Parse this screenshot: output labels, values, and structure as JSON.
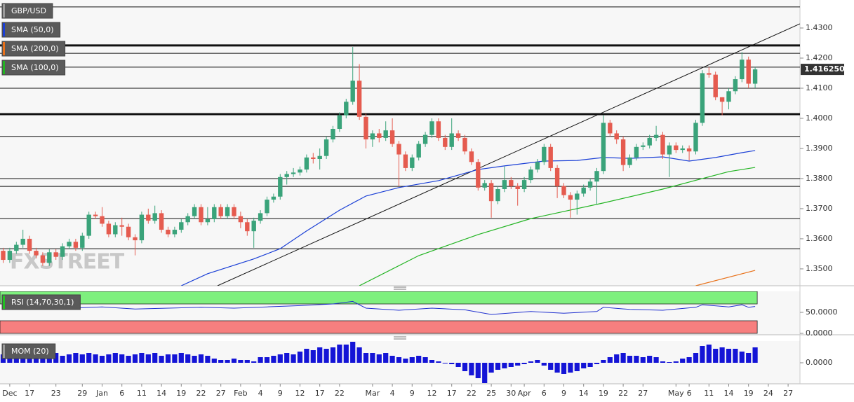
{
  "chart_data": [
    {
      "type": "candlestick",
      "symbol": "GBP/USD",
      "up_color": "#3aa37a",
      "down_color": "#e55b4f",
      "watermark": "FXSTREET",
      "categories": [
        null,
        "Dec",
        null,
        null,
        "17",
        null,
        null,
        null,
        "23",
        null,
        null,
        null,
        "29",
        null,
        null,
        "Jan",
        null,
        null,
        "6",
        null,
        null,
        "11",
        null,
        null,
        "14",
        null,
        null,
        "19",
        null,
        null,
        "22",
        null,
        null,
        "27",
        null,
        null,
        "Feb",
        null,
        null,
        "4",
        null,
        null,
        "9",
        null,
        null,
        "12",
        null,
        null,
        "17",
        null,
        null,
        "22",
        null,
        null,
        null,
        null,
        "Mar",
        null,
        null,
        "4",
        null,
        null,
        "9",
        null,
        null,
        "12",
        null,
        null,
        "17",
        null,
        null,
        "22",
        null,
        null,
        "25",
        null,
        null,
        "30",
        null,
        "Apr",
        null,
        null,
        "6",
        null,
        null,
        "9",
        null,
        null,
        "14",
        null,
        null,
        "19",
        null,
        null,
        "22",
        null,
        null,
        "27",
        null,
        null,
        null,
        null,
        "May",
        null,
        "6",
        null,
        null,
        "11",
        null,
        null,
        "14",
        null,
        null,
        "19",
        null,
        null,
        "24",
        null,
        null,
        "27"
      ],
      "open": [
        1.356,
        1.353,
        1.356,
        1.358,
        1.36,
        1.356,
        1.3545,
        1.352,
        1.3555,
        1.354,
        1.3575,
        1.359,
        1.357,
        1.361,
        1.368,
        1.3675,
        1.365,
        1.3615,
        1.3645,
        1.364,
        1.3605,
        1.3595,
        1.368,
        1.366,
        1.3685,
        1.363,
        1.3615,
        1.363,
        1.3655,
        1.3675,
        1.3705,
        1.3655,
        1.3665,
        1.3705,
        1.3675,
        1.3705,
        1.3675,
        1.3655,
        1.3625,
        1.366,
        1.3685,
        1.373,
        1.374,
        1.3805,
        1.3815,
        1.382,
        1.383,
        1.387,
        1.3865,
        1.3875,
        1.393,
        1.3965,
        1.401,
        1.4055,
        1.4125,
        1.4005,
        1.393,
        1.395,
        1.3935,
        1.396,
        1.3915,
        1.388,
        1.3835,
        1.387,
        1.3915,
        1.3945,
        1.399,
        1.3935,
        1.3905,
        1.395,
        1.3935,
        1.389,
        1.3855,
        1.377,
        1.3785,
        1.3725,
        1.3765,
        1.3795,
        1.3775,
        1.3765,
        1.3795,
        1.383,
        1.3855,
        1.3905,
        1.3835,
        1.3775,
        1.3745,
        1.373,
        1.375,
        1.377,
        1.379,
        1.3825,
        1.3985,
        1.395,
        1.393,
        1.3845,
        1.387,
        1.3905,
        1.391,
        1.3935,
        1.3945,
        1.388,
        1.391,
        1.3895,
        1.39,
        1.389,
        1.3985,
        1.415,
        1.4145,
        1.407,
        1.4055,
        1.409,
        1.413,
        1.4195,
        1.4115,
        null,
        null,
        null,
        null,
        null
      ],
      "high": [
        1.357,
        1.357,
        1.359,
        1.363,
        1.361,
        1.357,
        1.3555,
        1.3565,
        1.3565,
        1.3585,
        1.36,
        1.36,
        1.362,
        1.369,
        1.369,
        1.3705,
        1.366,
        1.3655,
        1.367,
        1.365,
        1.3615,
        1.369,
        1.37,
        1.371,
        1.3695,
        1.364,
        1.364,
        1.3665,
        1.3685,
        1.3715,
        1.3715,
        1.3705,
        1.3715,
        1.3715,
        1.3715,
        1.3715,
        1.369,
        1.3665,
        1.367,
        1.3695,
        1.374,
        1.375,
        1.3815,
        1.3825,
        1.3835,
        1.384,
        1.388,
        1.3885,
        1.39,
        1.394,
        1.3975,
        1.402,
        1.4065,
        1.4237,
        1.418,
        1.4015,
        1.396,
        1.3965,
        1.399,
        1.4,
        1.3925,
        1.389,
        1.388,
        1.3925,
        1.3955,
        1.4,
        1.4,
        1.3945,
        1.4,
        1.396,
        1.3945,
        1.39,
        1.3865,
        1.3795,
        1.3795,
        1.3775,
        1.384,
        1.3805,
        1.3785,
        1.3805,
        1.384,
        1.3865,
        1.3915,
        1.3915,
        1.3845,
        1.3785,
        1.3755,
        1.376,
        1.378,
        1.38,
        1.3835,
        1.401,
        1.3995,
        1.396,
        1.394,
        1.388,
        1.3915,
        1.392,
        1.3945,
        1.3975,
        1.3955,
        1.392,
        1.392,
        1.391,
        1.391,
        1.3995,
        1.416,
        1.417,
        1.4155,
        1.407,
        1.41,
        1.414,
        1.422,
        1.4205,
        1.417,
        null,
        null,
        null,
        null,
        null
      ],
      "low": [
        1.352,
        1.352,
        1.355,
        1.357,
        1.355,
        1.3535,
        1.351,
        1.351,
        1.353,
        1.353,
        1.3565,
        1.356,
        1.356,
        1.36,
        1.3665,
        1.364,
        1.3605,
        1.3605,
        1.361,
        1.3595,
        1.3545,
        1.3585,
        1.365,
        1.365,
        1.362,
        1.3605,
        1.3605,
        1.362,
        1.3645,
        1.3665,
        1.3645,
        1.3645,
        1.3655,
        1.3665,
        1.3665,
        1.3665,
        1.3635,
        1.361,
        1.357,
        1.365,
        1.3675,
        1.372,
        1.373,
        1.378,
        1.3805,
        1.381,
        1.382,
        1.385,
        1.383,
        1.3865,
        1.392,
        1.3955,
        1.4,
        1.4045,
        1.3995,
        1.39,
        1.3905,
        1.392,
        1.3925,
        1.3905,
        1.3775,
        1.3825,
        1.3825,
        1.386,
        1.3905,
        1.3935,
        1.3925,
        1.3895,
        1.3895,
        1.3925,
        1.388,
        1.3845,
        1.376,
        1.376,
        1.367,
        1.3715,
        1.3755,
        1.3765,
        1.371,
        1.3755,
        1.3785,
        1.382,
        1.3845,
        1.3825,
        1.3735,
        1.3735,
        1.367,
        1.368,
        1.374,
        1.376,
        1.3715,
        1.3815,
        1.394,
        1.3915,
        1.3825,
        1.3835,
        1.386,
        1.3895,
        1.39,
        1.3925,
        1.3865,
        1.3805,
        1.3885,
        1.3885,
        1.386,
        1.388,
        1.3975,
        1.4135,
        1.406,
        1.401,
        1.403,
        1.408,
        1.412,
        1.41,
        1.41,
        null,
        null,
        null,
        null,
        null
      ],
      "close": [
        1.353,
        1.356,
        1.358,
        1.36,
        1.356,
        1.3545,
        1.352,
        1.3555,
        1.354,
        1.3575,
        1.359,
        1.357,
        1.361,
        1.368,
        1.3675,
        1.365,
        1.3615,
        1.3645,
        1.364,
        1.3605,
        1.3595,
        1.368,
        1.366,
        1.3685,
        1.363,
        1.3615,
        1.363,
        1.3655,
        1.3675,
        1.3705,
        1.3655,
        1.3665,
        1.3705,
        1.3675,
        1.3705,
        1.3675,
        1.3655,
        1.3625,
        1.366,
        1.3685,
        1.373,
        1.374,
        1.3805,
        1.3815,
        1.382,
        1.383,
        1.387,
        1.3865,
        1.3875,
        1.393,
        1.3965,
        1.401,
        1.4055,
        1.4125,
        1.4005,
        1.393,
        1.395,
        1.3935,
        1.396,
        1.3915,
        1.388,
        1.3835,
        1.387,
        1.3915,
        1.3945,
        1.399,
        1.3935,
        1.3905,
        1.395,
        1.3935,
        1.389,
        1.3855,
        1.377,
        1.3785,
        1.3725,
        1.3765,
        1.3795,
        1.3775,
        1.3765,
        1.3795,
        1.383,
        1.3855,
        1.3905,
        1.3835,
        1.3775,
        1.3745,
        1.373,
        1.375,
        1.377,
        1.379,
        1.3825,
        1.3985,
        1.395,
        1.393,
        1.3845,
        1.387,
        1.3905,
        1.391,
        1.3935,
        1.3945,
        1.388,
        1.391,
        1.3895,
        1.39,
        1.389,
        1.3985,
        1.415,
        1.4145,
        1.407,
        1.4055,
        1.409,
        1.413,
        1.4195,
        1.4115,
        1.41625,
        null,
        null,
        null,
        null,
        null
      ],
      "last_label": "1.416250",
      "series": [
        {
          "name": "SMA (50,0)",
          "color": "#1a3fd6",
          "x": [
            27,
            31,
            38,
            42,
            46,
            51,
            55,
            60,
            66,
            72,
            76,
            82,
            87,
            91,
            95,
            100,
            104,
            108,
            112,
            114
          ],
          "values": [
            1.3444,
            1.3484,
            1.3533,
            1.3567,
            1.3626,
            1.3695,
            1.3742,
            1.377,
            1.3793,
            1.383,
            1.3842,
            1.3858,
            1.386,
            1.387,
            1.3867,
            1.3872,
            1.3858,
            1.387,
            1.3886,
            1.3893
          ]
        },
        {
          "name": "SMA (200,0)",
          "color": "#e8711a",
          "x": [
            105,
            114
          ],
          "values": [
            1.3444,
            1.3495
          ]
        },
        {
          "name": "SMA (100,0)",
          "color": "#22b422",
          "x": [
            54,
            63,
            72,
            80,
            91,
            100,
            106,
            110,
            114
          ],
          "values": [
            1.3444,
            1.3544,
            1.3614,
            1.3667,
            1.3719,
            1.3765,
            1.38,
            1.3823,
            1.3837
          ]
        }
      ],
      "levels": [
        1.437,
        1.4216,
        1.417,
        1.41,
        1.394,
        1.38,
        1.3774,
        1.3667,
        1.3567
      ],
      "thick_levels": [
        1.4242,
        1.4014
      ],
      "trendline": {
        "x": [
          32.5,
          120.8
        ],
        "y": [
          1.3444,
          1.4314
        ]
      },
      "ylim": [
        1.3444,
        1.4393
      ],
      "yticks": [
        {
          "value": 1.43,
          "label": "1.4300"
        },
        {
          "value": 1.42,
          "label": "1.4200"
        },
        {
          "value": 1.41,
          "label": "1.4100"
        },
        {
          "value": 1.4,
          "label": "1.4000"
        },
        {
          "value": 1.39,
          "label": "1.3900"
        },
        {
          "value": 1.38,
          "label": "1.3800"
        },
        {
          "value": 1.37,
          "label": "1.3700"
        },
        {
          "value": 1.36,
          "label": "1.3600"
        },
        {
          "value": 1.35,
          "label": "1.3500"
        }
      ]
    },
    {
      "type": "line",
      "title": "RSI (14,70,30,1)",
      "color": "#2030d0",
      "x": [
        0,
        5,
        10,
        15,
        20,
        25,
        30,
        35,
        40,
        45,
        50,
        53,
        55,
        60,
        65,
        70,
        74,
        80,
        85,
        90,
        91,
        95,
        100,
        105,
        106,
        110,
        112,
        113,
        114
      ],
      "values": [
        58,
        62,
        60,
        63,
        58,
        60,
        62,
        60,
        63,
        66,
        70,
        76,
        60,
        55,
        60,
        56,
        45,
        52,
        48,
        52,
        62,
        57,
        55,
        62,
        68,
        63,
        68,
        62,
        64
      ],
      "bands": [
        {
          "from": 70,
          "to": 100,
          "color": "#7ef07e"
        },
        {
          "from": 0,
          "to": 30,
          "color": "#f77f7f"
        }
      ],
      "ylim": [
        0,
        100
      ],
      "yticks": [
        {
          "value": 50,
          "label": "50.0000"
        },
        {
          "value": 0,
          "label": "0.0000"
        }
      ]
    },
    {
      "type": "bar",
      "title": "MOM (20)",
      "color": "#1414d6",
      "values": [
        0.012,
        0.018,
        0.008,
        0.012,
        0.01,
        0.006,
        0.008,
        0.01,
        0.014,
        0.01,
        0.012,
        0.014,
        0.012,
        0.014,
        0.012,
        0.01,
        0.012,
        0.014,
        0.012,
        0.01,
        0.012,
        0.014,
        0.012,
        0.014,
        0.01,
        0.012,
        0.012,
        0.014,
        0.012,
        0.01,
        0.012,
        0.01,
        0.006,
        0.004,
        0.004,
        0.006,
        0.004,
        0.004,
        0.002,
        0.008,
        0.008,
        0.01,
        0.012,
        0.014,
        0.012,
        0.016,
        0.02,
        0.018,
        0.022,
        0.02,
        0.022,
        0.026,
        0.026,
        0.03,
        0.022,
        0.014,
        0.014,
        0.012,
        0.014,
        0.01,
        0.008,
        0.006,
        0.008,
        0.01,
        0.008,
        0.004,
        0.002,
        -0.001,
        -0.002,
        -0.006,
        -0.012,
        -0.018,
        -0.022,
        -0.029,
        -0.014,
        -0.01,
        -0.008,
        -0.006,
        -0.004,
        -0.002,
        0.002,
        0.004,
        -0.004,
        -0.01,
        -0.014,
        -0.016,
        -0.014,
        -0.012,
        -0.008,
        -0.006,
        -0.002,
        0.004,
        0.008,
        0.012,
        0.014,
        0.01,
        0.01,
        0.008,
        0.01,
        0.008,
        0.002,
        0.001,
        0.002,
        0.006,
        0.008,
        0.014,
        0.024,
        0.026,
        0.02,
        0.022,
        0.02,
        0.02,
        0.016,
        0.014,
        0.022,
        null,
        null,
        null,
        null,
        null
      ],
      "ylim": [
        -0.029,
        0.031
      ],
      "yticks": [
        {
          "value": 0,
          "label": "0.0000"
        }
      ]
    }
  ]
}
